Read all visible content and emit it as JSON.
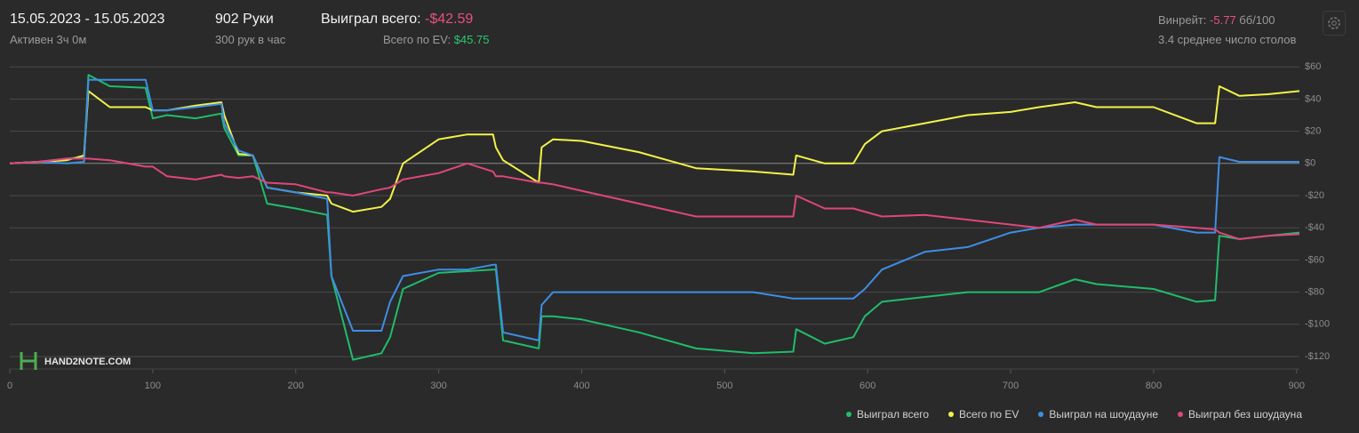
{
  "header": {
    "date_range": "15.05.2023 - 15.05.2023",
    "active": "Активен 3ч 0м",
    "hands": "902 Руки",
    "hands_per_hour": "300 рук в час",
    "won_total_label": "Выиграл всего:",
    "won_total_value": "-$42.59",
    "ev_total_label": "Всего по EV:",
    "ev_total_value": "$45.75",
    "winrate_label": "Винрейт:",
    "winrate_value": "-5.77",
    "winrate_unit": "бб/100",
    "avg_tables": "3.4 среднее число столов",
    "watermark": "HAND2NOTE.COM"
  },
  "chart_data": {
    "type": "line",
    "x": [
      0,
      20,
      40,
      52,
      55,
      70,
      95,
      100,
      110,
      130,
      148,
      150,
      160,
      170,
      180,
      200,
      222,
      225,
      240,
      260,
      266,
      275,
      300,
      320,
      338,
      340,
      345,
      370,
      372,
      380,
      400,
      440,
      480,
      520,
      548,
      550,
      570,
      590,
      598,
      610,
      640,
      670,
      700,
      720,
      745,
      760,
      800,
      830,
      843,
      846,
      860,
      880,
      902
    ],
    "series": [
      {
        "name": "Выиграл всего",
        "color": "#1fbd6b",
        "values": [
          0,
          1,
          3,
          4,
          55,
          48,
          47,
          28,
          30,
          28,
          31,
          22,
          5,
          5,
          -25,
          -28,
          -32,
          -70,
          -122,
          -118,
          -108,
          -78,
          -68,
          -67,
          -66,
          -66,
          -110,
          -115,
          -95,
          -95,
          -97,
          -105,
          -115,
          -118,
          -117,
          -103,
          -112,
          -108,
          -95,
          -86,
          -83,
          -80,
          -80,
          -80,
          -72,
          -75,
          -78,
          -86,
          -85,
          -45,
          -47,
          -45,
          -43
        ]
      },
      {
        "name": "Всего по EV",
        "color": "#f2f24a",
        "values": [
          0,
          1,
          2,
          5,
          45,
          35,
          35,
          33,
          33,
          36,
          38,
          30,
          6,
          5,
          -15,
          -18,
          -20,
          -25,
          -30,
          -27,
          -22,
          0,
          15,
          18,
          18,
          10,
          2,
          -12,
          10,
          15,
          14,
          7,
          -3,
          -5,
          -7,
          5,
          0,
          0,
          12,
          20,
          25,
          30,
          32,
          35,
          38,
          35,
          35,
          25,
          25,
          48,
          42,
          43,
          45
        ]
      },
      {
        "name": "Выиграл на шоудауне",
        "color": "#3e8ee6",
        "values": [
          0,
          1,
          0,
          1,
          52,
          52,
          52,
          33,
          33,
          35,
          37,
          25,
          8,
          5,
          -15,
          -18,
          -22,
          -70,
          -104,
          -104,
          -86,
          -70,
          -66,
          -66,
          -63,
          -63,
          -105,
          -110,
          -88,
          -80,
          -80,
          -80,
          -80,
          -80,
          -84,
          -84,
          -84,
          -84,
          -78,
          -66,
          -55,
          -52,
          -43,
          -40,
          -38,
          -38,
          -38,
          -43,
          -43,
          4,
          1,
          1,
          1
        ]
      },
      {
        "name": "Выиграл без шоудауна",
        "color": "#e0467a",
        "values": [
          0,
          1,
          3,
          3,
          3,
          2,
          -2,
          -2,
          -8,
          -10,
          -7,
          -8,
          -9,
          -8,
          -12,
          -13,
          -18,
          -18,
          -20,
          -16,
          -15,
          -10,
          -6,
          0,
          -5,
          -8,
          -8,
          -12,
          -12,
          -13,
          -17,
          -25,
          -33,
          -33,
          -33,
          -20,
          -28,
          -28,
          -30,
          -33,
          -32,
          -35,
          -38,
          -40,
          -35,
          -38,
          -38,
          -40,
          -41,
          -43,
          -47,
          -45,
          -44
        ]
      }
    ],
    "xlim": [
      0,
      902
    ],
    "xticks": [
      0,
      100,
      200,
      300,
      400,
      500,
      600,
      700,
      800,
      900
    ],
    "ylim": [
      -125,
      64
    ],
    "yticks": [
      {
        "value": -120,
        "label": "-$120"
      },
      {
        "value": -100,
        "label": "-$100"
      },
      {
        "value": -80,
        "label": "-$80"
      },
      {
        "value": -60,
        "label": "-$60"
      },
      {
        "value": -40,
        "label": "-$40"
      },
      {
        "value": -20,
        "label": "-$20"
      },
      {
        "value": 0,
        "label": "$0"
      },
      {
        "value": 20,
        "label": "$20"
      },
      {
        "value": 40,
        "label": "$40"
      },
      {
        "value": 60,
        "label": "$60"
      }
    ],
    "grid": true,
    "legend": "bottom-right"
  }
}
